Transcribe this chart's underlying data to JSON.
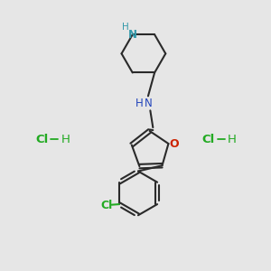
{
  "background_color": "#e6e6e6",
  "bond_color": "#2a2a2a",
  "N_pip_color": "#3399aa",
  "N_nh_color": "#2244bb",
  "O_color": "#cc2200",
  "Cl_bond_color": "#22aa22",
  "Cl_label_color": "#22aa22",
  "H_color": "#3399aa",
  "nh_H_color": "#2244bb",
  "figsize": [
    3.0,
    3.0
  ],
  "dpi": 100,
  "xlim": [
    0,
    10
  ],
  "ylim": [
    0,
    10
  ]
}
